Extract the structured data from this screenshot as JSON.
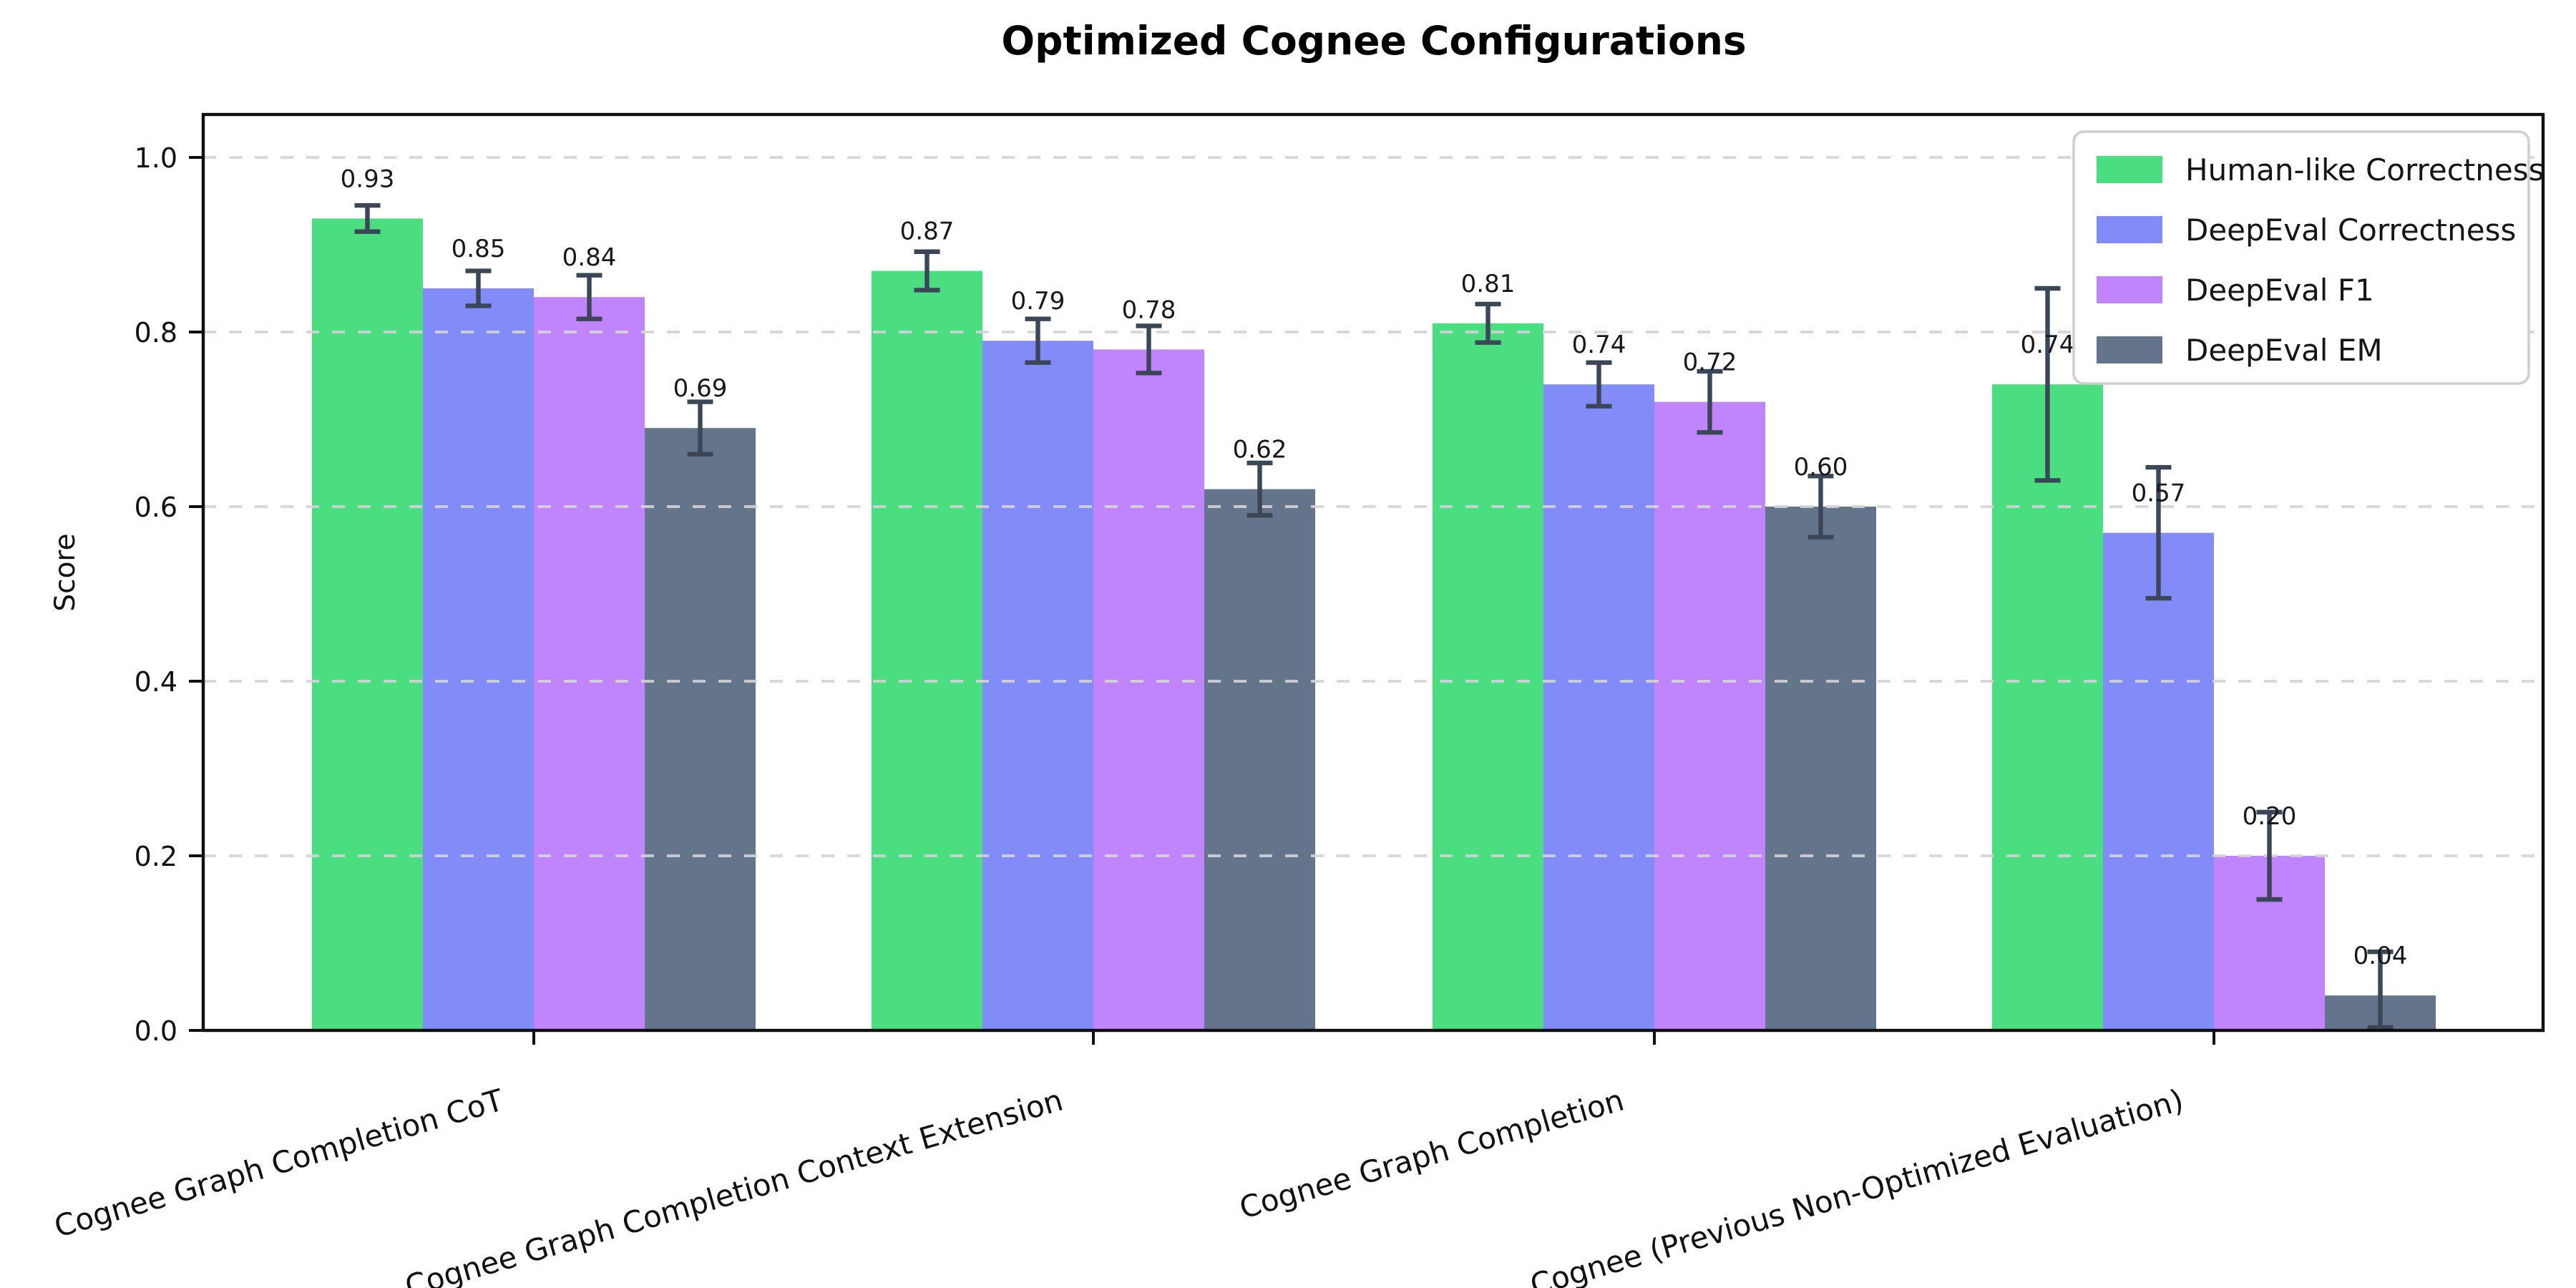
{
  "figure": {
    "title": "Optimized Cognee Configurations"
  },
  "chart_data": {
    "type": "bar",
    "title": "Optimized Cognee Configurations",
    "xlabel": "",
    "ylabel": "Score",
    "ylim": [
      0.0,
      1.05
    ],
    "yticks": [
      0.0,
      0.2,
      0.4,
      0.6,
      0.8,
      1.0
    ],
    "grid": "horizontal dashed gridlines",
    "legend_position": "upper right",
    "categories": [
      "Cognee Graph Completion CoT",
      "Cognee Graph Completion Context Extension",
      "Cognee Graph Completion",
      "Cognee (Previous Non-Optimized Evaluation)"
    ],
    "series": [
      {
        "name": "Human-like Correctness",
        "color": "#4ade80",
        "values": [
          0.93,
          0.87,
          0.81,
          0.74
        ],
        "errors": [
          0.015,
          0.022,
          0.022,
          0.11
        ]
      },
      {
        "name": "DeepEval Correctness",
        "color": "#818cf8",
        "values": [
          0.85,
          0.79,
          0.74,
          0.57
        ],
        "errors": [
          0.02,
          0.025,
          0.025,
          0.075
        ]
      },
      {
        "name": "DeepEval F1",
        "color": "#c084fc",
        "values": [
          0.84,
          0.78,
          0.72,
          0.2
        ],
        "errors": [
          0.025,
          0.027,
          0.035,
          0.05
        ]
      },
      {
        "name": "DeepEval EM",
        "color": "#64748b",
        "values": [
          0.69,
          0.62,
          0.6,
          0.04
        ],
        "errors": [
          0.03,
          0.03,
          0.035,
          0.05
        ]
      }
    ],
    "bar_value_labels": [
      [
        "0.93",
        "0.85",
        "0.84",
        "0.69"
      ],
      [
        "0.87",
        "0.79",
        "0.78",
        "0.62"
      ],
      [
        "0.81",
        "0.74",
        "0.72",
        "0.60"
      ],
      [
        "0.74",
        "0.57",
        "0.20",
        "0.04"
      ]
    ],
    "error_bar_color": "#3b4757",
    "grid_color": "#d4d4d8",
    "spine_color": "#0f0f0f"
  }
}
